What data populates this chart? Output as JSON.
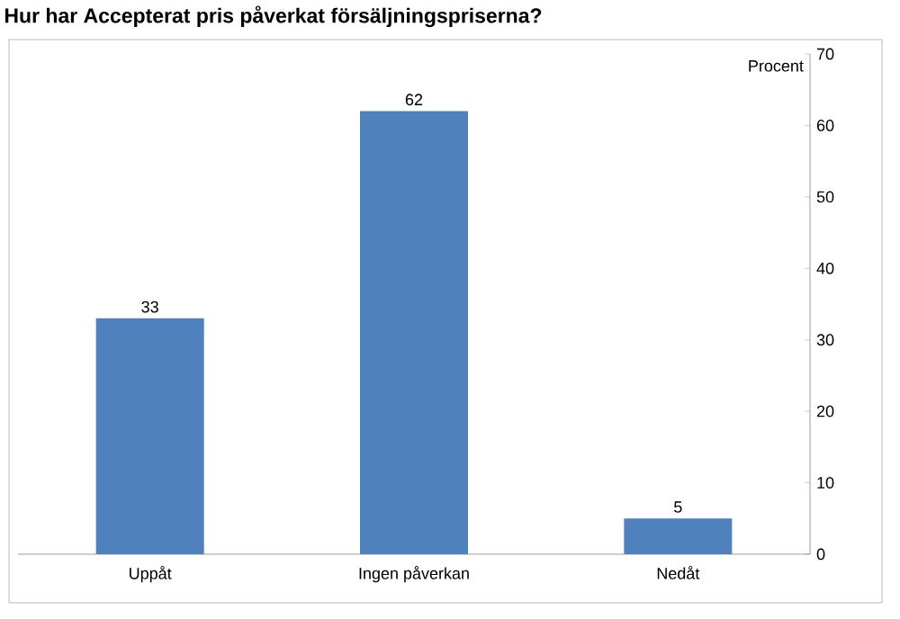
{
  "chart_data": {
    "type": "bar",
    "title": "Hur har Accepterat pris påverkat försäljningspriserna?",
    "ylabel": "Procent",
    "categories": [
      "Uppåt",
      "Ingen påverkan",
      "Nedåt"
    ],
    "values": [
      33,
      62,
      5
    ],
    "color": "#4f81bd",
    "data_labels": true,
    "ylim": [
      0,
      70
    ],
    "yticks": [
      0,
      10,
      20,
      30,
      40,
      50,
      60,
      70
    ],
    "grid": false
  }
}
